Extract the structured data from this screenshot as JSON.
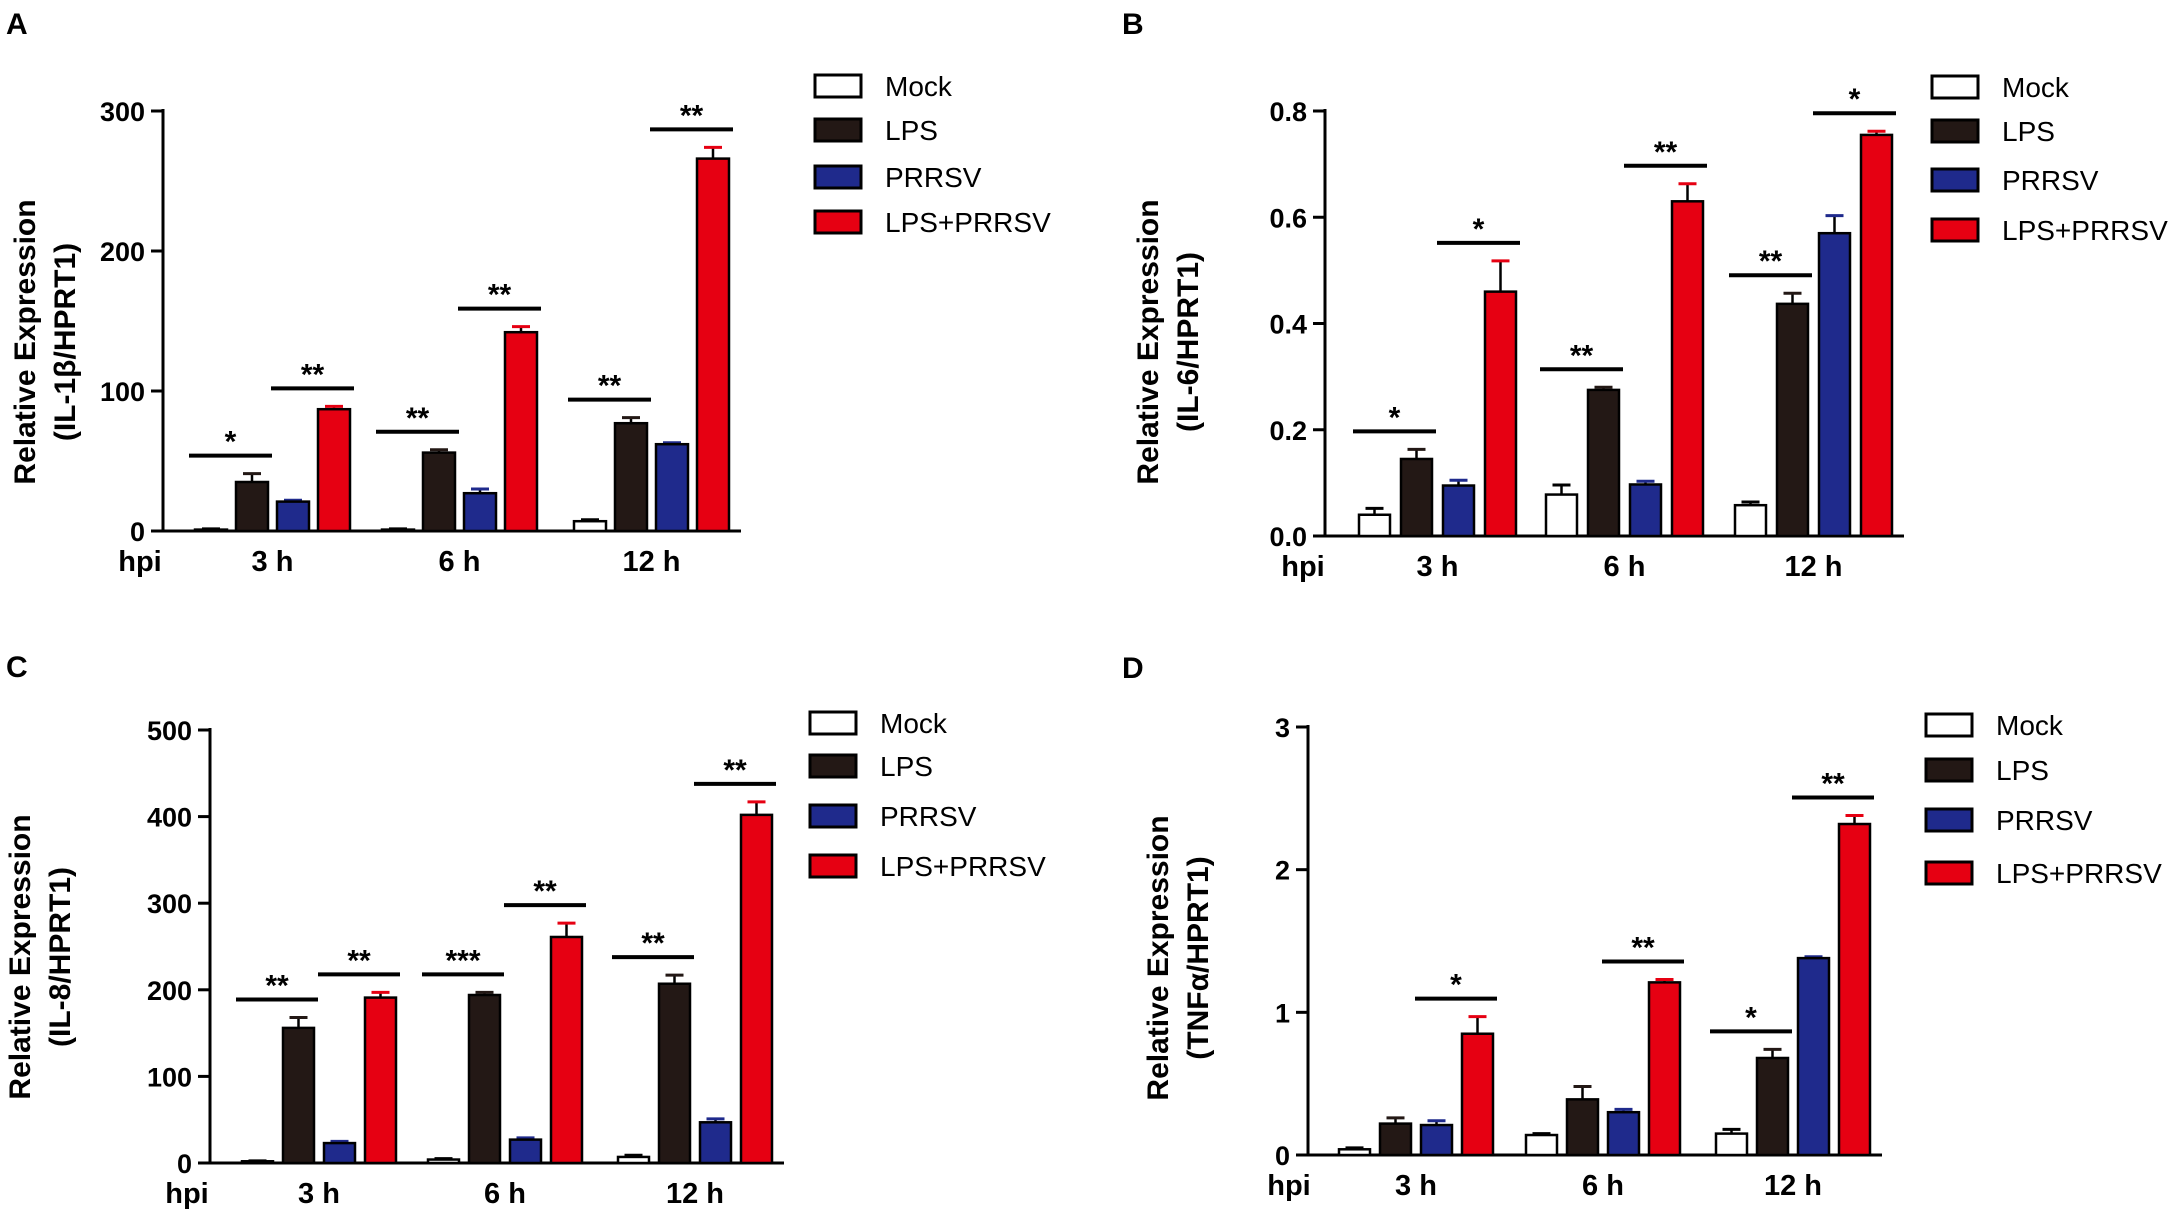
{
  "colors": {
    "Mock": "#ffffff",
    "LPS": "#231815",
    "PRRSV": "#1f2a8c",
    "LPS+PRRSV": "#e60012",
    "axis": "#000000"
  },
  "chart_data": [
    {
      "panel": "A",
      "type": "bar",
      "title": "",
      "xlabel": "hpi",
      "ylabel_line1": "Relative Expression",
      "ylabel_line2": "(IL-1β/HPRT1)",
      "ylim": [
        0,
        300
      ],
      "yticks": [
        0,
        100,
        200,
        300
      ],
      "ytick_labels": [
        "0",
        "100",
        "200",
        "300"
      ],
      "categories": [
        "3 h",
        "6 h",
        "12 h"
      ],
      "legend": [
        "Mock",
        "LPS",
        "PRRSV",
        "LPS+PRRSV"
      ],
      "series": [
        {
          "name": "Mock",
          "values": [
            1,
            1,
            7
          ],
          "errors": [
            0.5,
            0.5,
            1
          ]
        },
        {
          "name": "LPS",
          "values": [
            35,
            56,
            77
          ],
          "errors": [
            6,
            2,
            4
          ]
        },
        {
          "name": "PRRSV",
          "values": [
            21,
            27,
            62
          ],
          "errors": [
            1,
            3,
            1
          ]
        },
        {
          "name": "LPS+PRRSV",
          "values": [
            87,
            142,
            266
          ],
          "errors": [
            2,
            4,
            8
          ]
        }
      ],
      "significance": [
        {
          "category": "3 h",
          "compare": "LPS",
          "label": "*"
        },
        {
          "category": "3 h",
          "compare": "LPS+PRRSV",
          "label": "**"
        },
        {
          "category": "6 h",
          "compare": "LPS",
          "label": "**"
        },
        {
          "category": "6 h",
          "compare": "LPS+PRRSV",
          "label": "**"
        },
        {
          "category": "12 h",
          "compare": "LPS",
          "label": "**"
        },
        {
          "category": "12 h",
          "compare": "LPS+PRRSV",
          "label": "**"
        }
      ]
    },
    {
      "panel": "B",
      "type": "bar",
      "title": "",
      "xlabel": "hpi",
      "ylabel_line1": "Relative Expression",
      "ylabel_line2": "(IL-6/HPRT1)",
      "ylim": [
        0,
        0.8
      ],
      "yticks": [
        0,
        0.2,
        0.4,
        0.6,
        0.8
      ],
      "ytick_labels": [
        "0.0",
        "0.2",
        "0.4",
        "0.6",
        "0.8"
      ],
      "categories": [
        "3 h",
        "6 h",
        "12 h"
      ],
      "legend": [
        "Mock",
        "LPS",
        "PRRSV",
        "LPS+PRRSV"
      ],
      "series": [
        {
          "name": "Mock",
          "values": [
            0.04,
            0.078,
            0.058
          ],
          "errors": [
            0.012,
            0.018,
            0.006
          ]
        },
        {
          "name": "LPS",
          "values": [
            0.145,
            0.275,
            0.437
          ],
          "errors": [
            0.018,
            0.005,
            0.02
          ]
        },
        {
          "name": "PRRSV",
          "values": [
            0.095,
            0.097,
            0.57
          ],
          "errors": [
            0.01,
            0.006,
            0.033
          ]
        },
        {
          "name": "LPS+PRRSV",
          "values": [
            0.46,
            0.63,
            0.755
          ],
          "errors": [
            0.058,
            0.033,
            0.007
          ]
        }
      ],
      "significance": [
        {
          "category": "3 h",
          "compare": "LPS",
          "label": "*"
        },
        {
          "category": "3 h",
          "compare": "LPS+PRRSV",
          "label": "*"
        },
        {
          "category": "6 h",
          "compare": "LPS",
          "label": "**"
        },
        {
          "category": "6 h",
          "compare": "LPS+PRRSV",
          "label": "**"
        },
        {
          "category": "12 h",
          "compare": "LPS",
          "label": "**"
        },
        {
          "category": "12 h",
          "compare": "LPS+PRRSV",
          "label": "*"
        }
      ]
    },
    {
      "panel": "C",
      "type": "bar",
      "title": "",
      "xlabel": "hpi",
      "ylabel_line1": "Relative Expression",
      "ylabel_line2": "(IL-8/HPRT1)",
      "ylim": [
        0,
        500
      ],
      "yticks": [
        0,
        100,
        200,
        300,
        400,
        500
      ],
      "ytick_labels": [
        "0",
        "100",
        "200",
        "300",
        "400",
        "500"
      ],
      "categories": [
        "3 h",
        "6 h",
        "12 h"
      ],
      "legend": [
        "Mock",
        "LPS",
        "PRRSV",
        "LPS+PRRSV"
      ],
      "series": [
        {
          "name": "Mock",
          "values": [
            2,
            4,
            7
          ],
          "errors": [
            0.5,
            1,
            2
          ]
        },
        {
          "name": "LPS",
          "values": [
            156,
            194,
            207
          ],
          "errors": [
            12,
            3,
            10
          ]
        },
        {
          "name": "PRRSV",
          "values": [
            23,
            27,
            47
          ],
          "errors": [
            2,
            2,
            4
          ]
        },
        {
          "name": "LPS+PRRSV",
          "values": [
            191,
            261,
            402
          ],
          "errors": [
            6,
            16,
            15
          ]
        }
      ],
      "significance": [
        {
          "category": "3 h",
          "compare": "LPS",
          "label": "**"
        },
        {
          "category": "3 h",
          "compare": "LPS+PRRSV",
          "label": "**"
        },
        {
          "category": "6 h",
          "compare": "LPS",
          "label": "***"
        },
        {
          "category": "6 h",
          "compare": "LPS+PRRSV",
          "label": "**"
        },
        {
          "category": "12 h",
          "compare": "LPS",
          "label": "**"
        },
        {
          "category": "12 h",
          "compare": "LPS+PRRSV",
          "label": "**"
        }
      ]
    },
    {
      "panel": "D",
      "type": "bar",
      "title": "",
      "xlabel": "hpi",
      "ylabel_line1": "Relative Expression",
      "ylabel_line2": "(TNFα/HPRT1)",
      "ylim": [
        0,
        3
      ],
      "yticks": [
        0,
        1,
        2,
        3
      ],
      "ytick_labels": [
        "0",
        "1",
        "2",
        "3"
      ],
      "categories": [
        "3 h",
        "6 h",
        "12 h"
      ],
      "legend": [
        "Mock",
        "LPS",
        "PRRSV",
        "LPS+PRRSV"
      ],
      "series": [
        {
          "name": "Mock",
          "values": [
            0.04,
            0.14,
            0.15
          ],
          "errors": [
            0.01,
            0.01,
            0.03
          ]
        },
        {
          "name": "LPS",
          "values": [
            0.22,
            0.39,
            0.68
          ],
          "errors": [
            0.04,
            0.09,
            0.06
          ]
        },
        {
          "name": "PRRSV",
          "values": [
            0.21,
            0.3,
            1.38
          ],
          "errors": [
            0.03,
            0.02,
            0.01
          ]
        },
        {
          "name": "LPS+PRRSV",
          "values": [
            0.85,
            1.21,
            2.32
          ],
          "errors": [
            0.12,
            0.02,
            0.06
          ]
        }
      ],
      "significance": [
        {
          "category": "3 h",
          "compare": "LPS+PRRSV",
          "label": "*"
        },
        {
          "category": "6 h",
          "compare": "LPS+PRRSV",
          "label": "**"
        },
        {
          "category": "12 h",
          "compare": "LPS",
          "label": "*"
        },
        {
          "category": "12 h",
          "compare": "LPS+PRRSV",
          "label": "**"
        }
      ]
    }
  ]
}
